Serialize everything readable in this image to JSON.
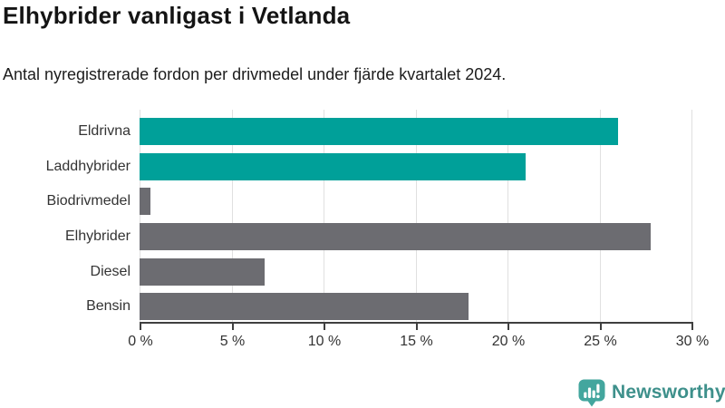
{
  "header": {
    "title": "Elhybrider vanligast i Vetlanda",
    "subtitle": "Antal nyregistrerade fordon per drivmedel under fjärde kvartalet 2024."
  },
  "chart_data": {
    "type": "bar",
    "orientation": "horizontal",
    "title": "Elhybrider vanligast i Vetlanda",
    "subtitle": "Antal nyregistrerade fordon per drivmedel under fjärde kvartalet 2024.",
    "categories": [
      "Eldrivna",
      "Laddhybrider",
      "Biodrivmedel",
      "Elhybrider",
      "Diesel",
      "Bensin"
    ],
    "values": [
      26.0,
      21.0,
      0.6,
      27.8,
      6.8,
      17.9
    ],
    "unit": "%",
    "bar_colors": [
      "#00a099",
      "#00a099",
      "#6c6c71",
      "#6c6c71",
      "#6c6c71",
      "#6c6c71"
    ],
    "xlabel": "",
    "ylabel": "",
    "xlim": [
      0,
      30
    ],
    "x_ticks": [
      0,
      5,
      10,
      15,
      20,
      25,
      30
    ],
    "x_tick_labels": [
      "0 %",
      "5 %",
      "10 %",
      "15 %",
      "20 %",
      "25 %",
      "30 %"
    ],
    "grid": true,
    "legend": false
  },
  "footer": {
    "brand": "Newsworthy"
  },
  "colors": {
    "teal": "#00a099",
    "gray": "#6c6c71",
    "gridline": "#e0e0e0",
    "axis": "#3f3f3f",
    "brand_icon": "#43a69e",
    "brand_text": "#3e908b"
  }
}
